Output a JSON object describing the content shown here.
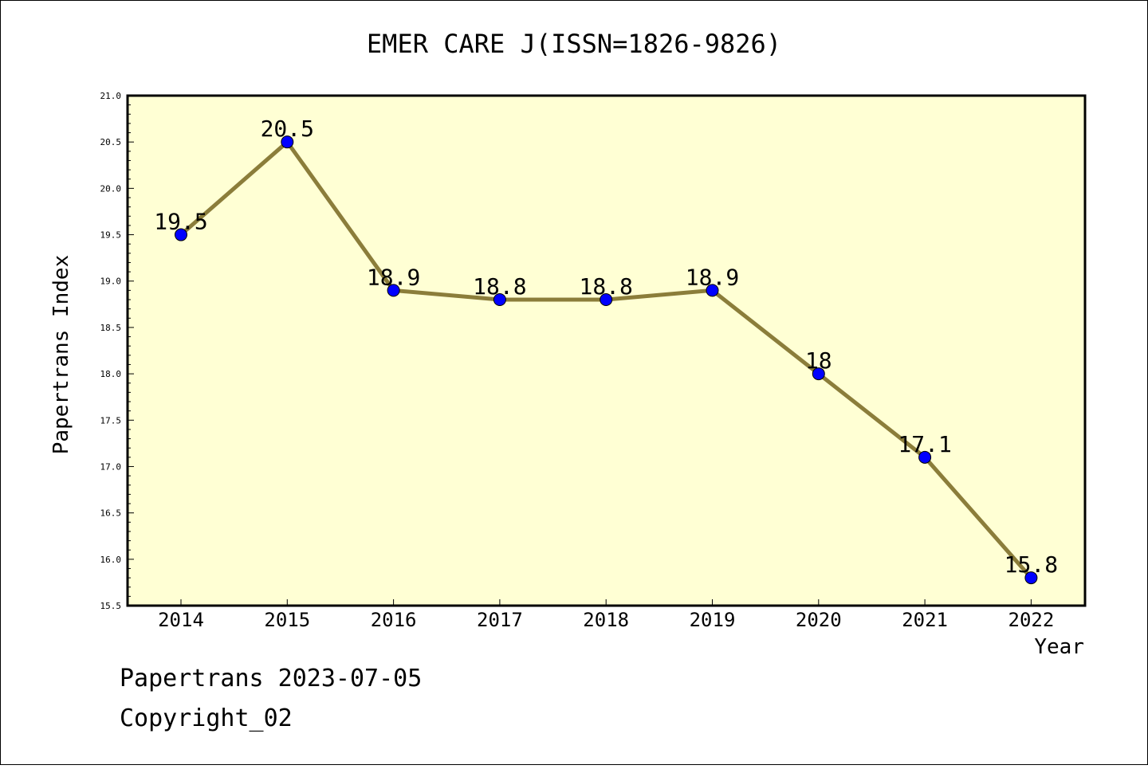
{
  "chart_data": {
    "type": "line",
    "title": "EMER CARE J(ISSN=1826-9826)",
    "xlabel": "Year",
    "ylabel": "Papertrans Index",
    "categories": [
      "2014",
      "2015",
      "2016",
      "2017",
      "2018",
      "2019",
      "2020",
      "2021",
      "2022"
    ],
    "values": [
      19.5,
      20.5,
      18.9,
      18.8,
      18.8,
      18.9,
      18.0,
      17.1,
      15.8
    ],
    "data_labels": [
      "19.5",
      "20.5",
      "18.9",
      "18.8",
      "18.8",
      "18.9",
      "18",
      "17.1",
      "15.8"
    ],
    "ylim": [
      15.5,
      21.0
    ],
    "yticks": [
      "15.5",
      "16.0",
      "16.5",
      "17.0",
      "17.5",
      "18.0",
      "18.5",
      "19.0",
      "19.5",
      "20.0",
      "20.5",
      "21.0"
    ],
    "grid": false,
    "legend": "none",
    "colors": {
      "line": "#8b7d3a",
      "marker_fill": "#0000ff",
      "plot_background": "#ffffd4"
    }
  },
  "footer": {
    "date_line": "Papertrans 2023-07-05",
    "copyright_line": "Copyright_02"
  }
}
